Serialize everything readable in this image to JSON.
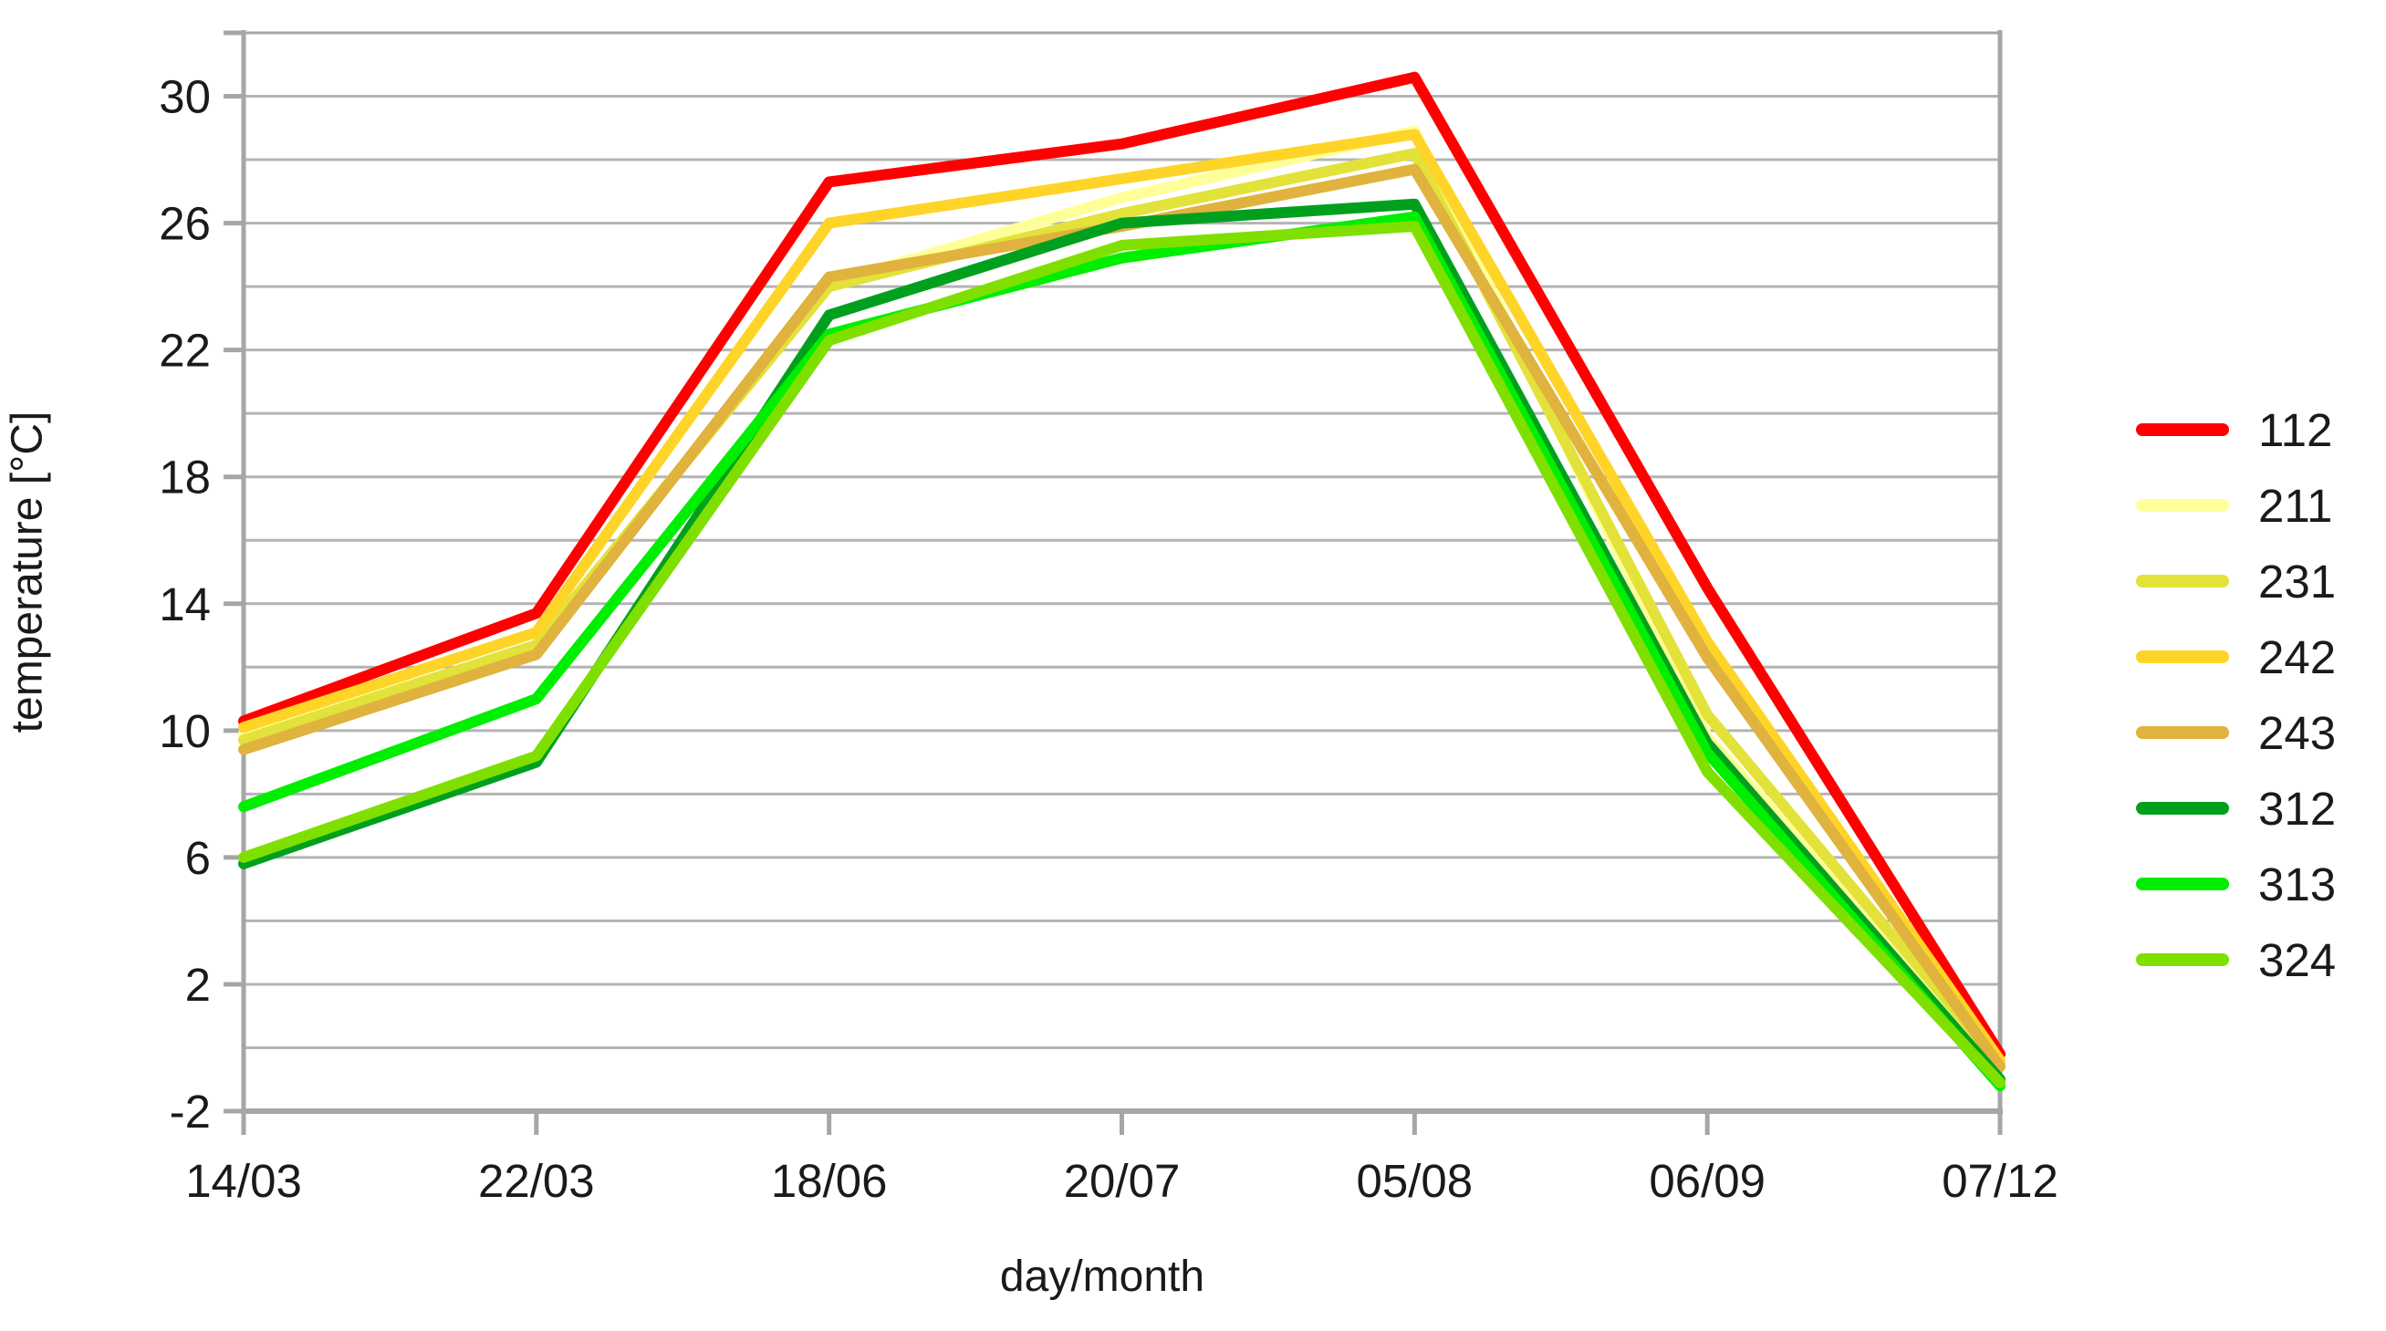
{
  "chart_data": {
    "type": "line",
    "title": "",
    "xlabel": "day/month",
    "ylabel": "temperature [°C]",
    "categories": [
      "14/03",
      "22/03",
      "18/06",
      "20/07",
      "05/08",
      "06/09",
      "07/12"
    ],
    "series": [
      {
        "name": "112",
        "color": "#ff0000",
        "values": [
          10.3,
          13.7,
          27.3,
          28.5,
          30.6,
          14.5,
          -0.2
        ]
      },
      {
        "name": "211",
        "color": "#ffff99",
        "values": [
          9.9,
          12.6,
          24.1,
          26.8,
          28.9,
          9.8,
          -0.5
        ]
      },
      {
        "name": "231",
        "color": "#e2e23a",
        "values": [
          9.7,
          12.7,
          24.0,
          26.3,
          28.2,
          10.5,
          -0.5
        ]
      },
      {
        "name": "242",
        "color": "#ffd428",
        "values": [
          10.1,
          13.1,
          26.0,
          27.4,
          28.8,
          12.8,
          -0.4
        ]
      },
      {
        "name": "243",
        "color": "#e0b23e",
        "values": [
          9.4,
          12.4,
          24.3,
          25.9,
          27.7,
          12.3,
          -0.6
        ]
      },
      {
        "name": "312",
        "color": "#00a01e",
        "values": [
          5.8,
          9.0,
          23.1,
          26.0,
          26.6,
          9.6,
          -1.0
        ]
      },
      {
        "name": "313",
        "color": "#00ee00",
        "values": [
          7.6,
          11.0,
          22.5,
          24.9,
          26.2,
          9.3,
          -1.2
        ]
      },
      {
        "name": "324",
        "color": "#7fe000",
        "values": [
          6.0,
          9.2,
          22.3,
          25.3,
          25.9,
          8.7,
          -1.1
        ]
      }
    ],
    "ylim": [
      -2,
      32
    ],
    "y_major_step": 4,
    "y_minor_step": 2,
    "y_tick_labels": [
      "-2",
      "2",
      "6",
      "10",
      "14",
      "18",
      "22",
      "26",
      "30"
    ],
    "grid": true,
    "legend_position": "right"
  },
  "colors": {
    "background": "#ffffff",
    "gridline": "#b4b4b4",
    "axis": "#a6a6a6",
    "text": "#1a1a1a"
  }
}
